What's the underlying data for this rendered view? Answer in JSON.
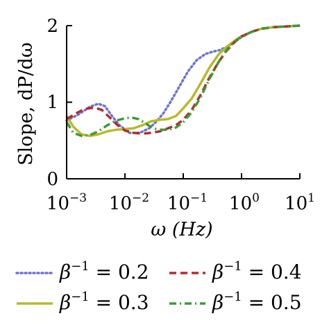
{
  "chart_data": {
    "type": "line",
    "xscale": "log",
    "xlim": [
      0.001,
      10
    ],
    "ylim": [
      0,
      2
    ],
    "xlabel": "ω (Hz)",
    "ylabel": "Slope, dP/dω",
    "xticks": [
      {
        "base": "10",
        "exp": "−3",
        "value": 0.001
      },
      {
        "base": "10",
        "exp": "−2",
        "value": 0.01
      },
      {
        "base": "10",
        "exp": "−1",
        "value": 0.1
      },
      {
        "base": "10",
        "exp": "0",
        "value": 1
      },
      {
        "base": "10",
        "exp": "1",
        "value": 10
      }
    ],
    "yticks": [
      "0",
      "1",
      "2"
    ],
    "legend_position": "bottom",
    "series": [
      {
        "name": "β⁻¹ = 0.2",
        "legend_label": "= 0.2",
        "color": "#6b73d6",
        "dash": "dotted",
        "x": [
          0.001,
          0.0016,
          0.0025,
          0.0035,
          0.0045,
          0.006,
          0.008,
          0.012,
          0.018,
          0.026,
          0.035,
          0.045,
          0.06,
          0.085,
          0.12,
          0.17,
          0.24,
          0.32,
          0.42,
          0.55,
          0.7,
          1.0,
          1.5,
          2.2,
          3.5,
          6,
          10
        ],
        "y": [
          0.76,
          0.84,
          0.94,
          0.98,
          0.95,
          0.82,
          0.7,
          0.6,
          0.6,
          0.66,
          0.75,
          0.85,
          1.0,
          1.2,
          1.4,
          1.55,
          1.63,
          1.66,
          1.68,
          1.72,
          1.77,
          1.85,
          1.92,
          1.96,
          1.98,
          1.99,
          2.0
        ]
      },
      {
        "name": "β⁻¹ = 0.3",
        "legend_label": "= 0.3",
        "color": "#b9b928",
        "dash": "solid",
        "x": [
          0.001,
          0.0013,
          0.0018,
          0.0025,
          0.0035,
          0.005,
          0.007,
          0.01,
          0.014,
          0.02,
          0.028,
          0.04,
          0.055,
          0.075,
          0.1,
          0.14,
          0.2,
          0.28,
          0.4,
          0.55,
          0.75,
          1.0,
          1.5,
          2.2,
          3.5,
          6,
          10
        ],
        "y": [
          0.82,
          0.68,
          0.58,
          0.56,
          0.58,
          0.62,
          0.64,
          0.65,
          0.66,
          0.7,
          0.75,
          0.77,
          0.78,
          0.82,
          0.92,
          1.05,
          1.25,
          1.45,
          1.62,
          1.72,
          1.8,
          1.86,
          1.92,
          1.96,
          1.98,
          1.99,
          2.0
        ]
      },
      {
        "name": "β⁻¹ = 0.4",
        "legend_label": "= 0.4",
        "color": "#b52b2b",
        "dash": "dashed",
        "x": [
          0.001,
          0.0015,
          0.002,
          0.003,
          0.004,
          0.0055,
          0.0075,
          0.01,
          0.014,
          0.02,
          0.028,
          0.04,
          0.055,
          0.075,
          0.1,
          0.14,
          0.2,
          0.28,
          0.4,
          0.55,
          0.75,
          1.0,
          1.5,
          2.2,
          3.5,
          6,
          10
        ],
        "y": [
          0.78,
          0.86,
          0.91,
          0.93,
          0.9,
          0.8,
          0.7,
          0.63,
          0.6,
          0.59,
          0.6,
          0.62,
          0.66,
          0.7,
          0.77,
          0.9,
          1.1,
          1.32,
          1.52,
          1.67,
          1.78,
          1.86,
          1.92,
          1.96,
          1.98,
          1.99,
          2.0
        ]
      },
      {
        "name": "β⁻¹ = 0.5",
        "legend_label": "= 0.5",
        "color": "#3a9a3a",
        "dash": "dashdot",
        "x": [
          0.001,
          0.0013,
          0.0018,
          0.0025,
          0.0035,
          0.005,
          0.007,
          0.01,
          0.013,
          0.017,
          0.023,
          0.03,
          0.04,
          0.055,
          0.075,
          0.1,
          0.14,
          0.2,
          0.28,
          0.4,
          0.55,
          0.75,
          1.0,
          1.5,
          2.2,
          3.5,
          6,
          10
        ],
        "y": [
          0.74,
          0.6,
          0.56,
          0.57,
          0.62,
          0.7,
          0.76,
          0.79,
          0.8,
          0.78,
          0.72,
          0.66,
          0.64,
          0.64,
          0.67,
          0.74,
          0.87,
          1.07,
          1.3,
          1.52,
          1.68,
          1.79,
          1.86,
          1.92,
          1.96,
          1.98,
          1.99,
          2.0
        ]
      }
    ]
  },
  "legend": {
    "symbol": "β",
    "exponent": "−1"
  }
}
